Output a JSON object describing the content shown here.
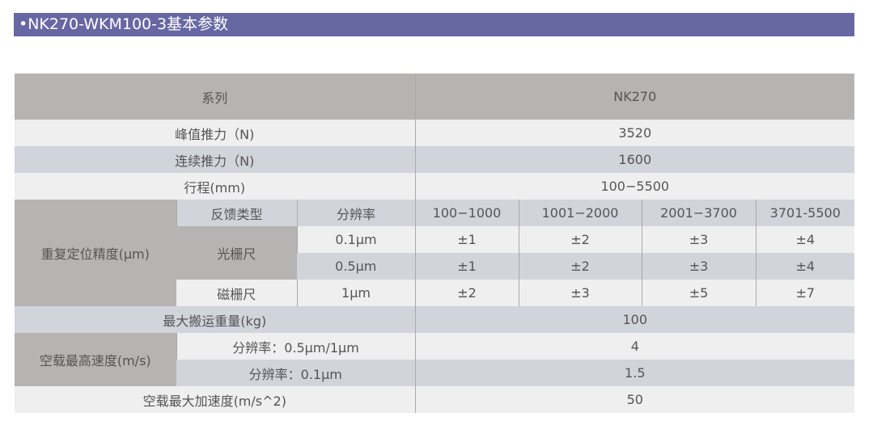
{
  "title": "•NK270-WKM100-3基本参数",
  "colors": {
    "banner": "#6667a3",
    "header": "#b5b4b3",
    "row_light": "#efefef",
    "row_blue": "#d1d4db"
  },
  "table": {
    "series_label": "系列",
    "series_value": "NK270",
    "peak_force": {
      "label": "峰值推力（N)",
      "value": "3520"
    },
    "cont_force": {
      "label": "连续推力（N)",
      "value": "1600"
    },
    "stroke": {
      "label": "行程(mm)",
      "value": "100−5500"
    },
    "repeat": {
      "label": "重复定位精度(μm)",
      "feedback_type": "反馈类型",
      "resolution": "分辨率",
      "ranges": [
        "100−1000",
        "1001−2000",
        "2001−3700",
        "3701-5500"
      ],
      "optical": "光栅尺",
      "magnetic": "磁栅尺",
      "rows": [
        {
          "res": "0.1μm",
          "vals": [
            "±1",
            "±2",
            "±3",
            "±4"
          ]
        },
        {
          "res": "0.5μm",
          "vals": [
            "±1",
            "±2",
            "±3",
            "±4"
          ]
        },
        {
          "res": "1μm",
          "vals": [
            "±2",
            "±3",
            "±5",
            "±7"
          ]
        }
      ]
    },
    "payload": {
      "label": "最大搬运重量(kg)",
      "value": "100"
    },
    "speed": {
      "label": "空载最高速度(m/s)",
      "rows": [
        {
          "label": "分辨率：0.5μm/1μm",
          "value": "4"
        },
        {
          "label": "分辨率：0.1μm",
          "value": "1.5"
        }
      ]
    },
    "accel": {
      "label": "空载最大加速度(m/s^2)",
      "value": "50"
    }
  }
}
